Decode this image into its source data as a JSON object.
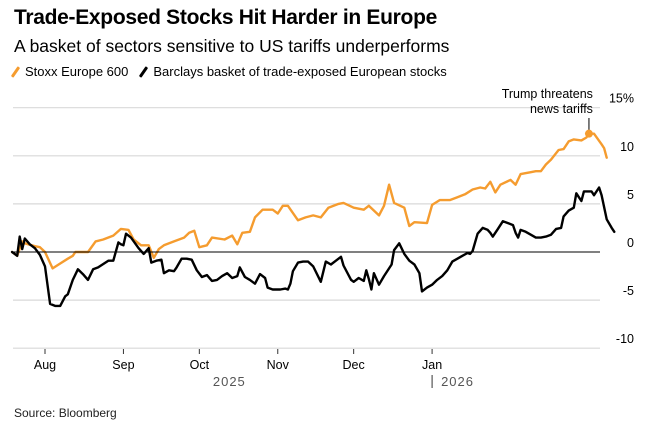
{
  "chart_data": {
    "type": "line",
    "title": "Trade-Exposed Stocks Hit Harder in Europe",
    "subtitle": "A basket of sectors sensitive to US tariffs underperforms",
    "source": "Source: Bloomberg",
    "xlabel": "",
    "ylabel": "",
    "x_unit": "days since 2025-07-01",
    "xlim": [
      18,
      249
    ],
    "ylim": [
      -11,
      16.5
    ],
    "y_ticks": [
      {
        "value": 15,
        "label": "15%"
      },
      {
        "value": 10,
        "label": "10"
      },
      {
        "value": 5,
        "label": "5"
      },
      {
        "value": 0,
        "label": "0"
      },
      {
        "value": -5,
        "label": "-5"
      },
      {
        "value": -10,
        "label": "-10"
      }
    ],
    "x_ticks": [
      {
        "value": 31,
        "label": "Aug"
      },
      {
        "value": 62,
        "label": "Sep"
      },
      {
        "value": 92,
        "label": "Oct"
      },
      {
        "value": 123,
        "label": "Nov"
      },
      {
        "value": 153,
        "label": "Dec"
      },
      {
        "value": 184,
        "label": "Jan"
      }
    ],
    "year_labels": [
      {
        "value": 92,
        "label": "2025"
      },
      {
        "value": 184,
        "label": "2026",
        "divider": true
      }
    ],
    "grid": true,
    "legend_position": "top-left",
    "series": [
      {
        "name": "Stoxx Europe 600",
        "color": "#f59c2f",
        "points": [
          [
            18,
            0
          ],
          [
            20,
            -0.4
          ],
          [
            22,
            1.1
          ],
          [
            23,
            0.9
          ],
          [
            27,
            0.6
          ],
          [
            29,
            0.5
          ],
          [
            31,
            0
          ],
          [
            34,
            -1.7
          ],
          [
            37,
            -1.2
          ],
          [
            40,
            -0.7
          ],
          [
            42,
            -0.4
          ],
          [
            43,
            0
          ],
          [
            48,
            0
          ],
          [
            51,
            1.1
          ],
          [
            54,
            1.3
          ],
          [
            58,
            1.7
          ],
          [
            61,
            2.4
          ],
          [
            64,
            2.3
          ],
          [
            66,
            1.3
          ],
          [
            69,
            0.7
          ],
          [
            72,
            0.7
          ],
          [
            74,
            -0.6
          ],
          [
            76,
            0.3
          ],
          [
            78,
            0.7
          ],
          [
            82,
            1.1
          ],
          [
            86,
            1.5
          ],
          [
            88,
            2.0
          ],
          [
            90,
            2.2
          ],
          [
            92,
            0.5
          ],
          [
            95,
            0.7
          ],
          [
            97,
            1.5
          ],
          [
            102,
            1.3
          ],
          [
            105,
            1.7
          ],
          [
            107,
            0.8
          ],
          [
            109,
            2.0
          ],
          [
            112,
            2.1
          ],
          [
            114,
            3.6
          ],
          [
            117,
            4.4
          ],
          [
            121,
            4.4
          ],
          [
            123,
            4.0
          ],
          [
            125,
            4.8
          ],
          [
            127,
            4.8
          ],
          [
            131,
            3.3
          ],
          [
            134,
            3.6
          ],
          [
            137,
            3.8
          ],
          [
            140,
            3.6
          ],
          [
            143,
            4.6
          ],
          [
            147,
            5.0
          ],
          [
            149,
            5.1
          ],
          [
            153,
            4.6
          ],
          [
            157,
            4.4
          ],
          [
            159,
            4.8
          ],
          [
            163,
            3.8
          ],
          [
            165,
            4.8
          ],
          [
            167,
            7.0
          ],
          [
            169,
            5.1
          ],
          [
            173,
            4.6
          ],
          [
            175,
            2.7
          ],
          [
            177,
            3.1
          ],
          [
            182,
            3.0
          ],
          [
            184,
            4.9
          ],
          [
            187,
            5.4
          ],
          [
            191,
            5.4
          ],
          [
            194,
            5.7
          ],
          [
            197,
            6.0
          ],
          [
            200,
            6.5
          ],
          [
            203,
            6.7
          ],
          [
            205,
            6.6
          ],
          [
            207,
            7.3
          ],
          [
            209,
            6.2
          ],
          [
            211,
            7.0
          ],
          [
            215,
            7.5
          ],
          [
            217,
            7.0
          ],
          [
            219,
            8.1
          ],
          [
            223,
            8.3
          ],
          [
            225,
            8.4
          ],
          [
            227,
            8.4
          ],
          [
            229,
            9.1
          ],
          [
            231,
            9.6
          ],
          [
            234,
            10.6
          ],
          [
            236,
            10.7
          ],
          [
            238,
            11.5
          ],
          [
            240,
            11.7
          ],
          [
            243,
            11.6
          ],
          [
            245,
            11.9
          ],
          [
            246,
            12.3
          ],
          [
            248,
            12.3
          ],
          [
            251,
            11.2
          ],
          [
            252,
            10.8
          ],
          [
            253,
            9.8
          ]
        ],
        "annotation": {
          "x": 246,
          "y": 12.3,
          "text_lines": [
            "Trump threatens",
            "news tariffs"
          ]
        }
      },
      {
        "name": "Barclays basket of trade-exposed European stocks",
        "color": "#000000",
        "points": [
          [
            18,
            0
          ],
          [
            20,
            -0.4
          ],
          [
            21,
            1.6
          ],
          [
            22,
            0.3
          ],
          [
            23,
            1.4
          ],
          [
            25,
            0.8
          ],
          [
            27,
            0.4
          ],
          [
            29,
            -0.3
          ],
          [
            31,
            -1.5
          ],
          [
            33,
            -5.4
          ],
          [
            35,
            -5.6
          ],
          [
            37,
            -5.6
          ],
          [
            39,
            -4.6
          ],
          [
            40,
            -4.4
          ],
          [
            42,
            -2.9
          ],
          [
            44,
            -1.8
          ],
          [
            46,
            -2.3
          ],
          [
            48,
            -2.9
          ],
          [
            50,
            -1.8
          ],
          [
            52,
            -1.6
          ],
          [
            56,
            -0.9
          ],
          [
            58,
            -0.9
          ],
          [
            60,
            1.0
          ],
          [
            61,
            0.8
          ],
          [
            62,
            0.7
          ],
          [
            63,
            1.9
          ],
          [
            65,
            1.5
          ],
          [
            68,
            0.4
          ],
          [
            70,
            -0.2
          ],
          [
            72,
            0.4
          ],
          [
            73,
            -1.1
          ],
          [
            75,
            -0.9
          ],
          [
            77,
            -0.8
          ],
          [
            78,
            -2.2
          ],
          [
            80,
            -1.9
          ],
          [
            82,
            -2.0
          ],
          [
            83,
            -1.6
          ],
          [
            85,
            -0.7
          ],
          [
            87,
            -0.7
          ],
          [
            89,
            -0.8
          ],
          [
            91,
            -1.9
          ],
          [
            93,
            -2.6
          ],
          [
            95,
            -2.4
          ],
          [
            97,
            -3.0
          ],
          [
            99,
            -2.9
          ],
          [
            101,
            -2.5
          ],
          [
            103,
            -2.2
          ],
          [
            105,
            -2.7
          ],
          [
            107,
            -2.5
          ],
          [
            108,
            -1.6
          ],
          [
            110,
            -2.6
          ],
          [
            112,
            -2.9
          ],
          [
            114,
            -3.3
          ],
          [
            116,
            -2.3
          ],
          [
            118,
            -2.7
          ],
          [
            119,
            -3.7
          ],
          [
            121,
            -3.9
          ],
          [
            124,
            -3.9
          ],
          [
            126,
            -3.8
          ],
          [
            127,
            -3.9
          ],
          [
            128,
            -3.3
          ],
          [
            129,
            -2.0
          ],
          [
            131,
            -1.1
          ],
          [
            133,
            -1.0
          ],
          [
            135,
            -1.0
          ],
          [
            137,
            -1.5
          ],
          [
            140,
            -3.1
          ],
          [
            142,
            -1.0
          ],
          [
            144,
            -1.3
          ],
          [
            146,
            -0.9
          ],
          [
            148,
            -0.5
          ],
          [
            149,
            -1.4
          ],
          [
            152,
            -2.9
          ],
          [
            153,
            -3.1
          ],
          [
            155,
            -2.7
          ],
          [
            157,
            -3.0
          ],
          [
            158,
            -1.9
          ],
          [
            159,
            -2.8
          ],
          [
            160,
            -3.9
          ],
          [
            161,
            -2.2
          ],
          [
            163,
            -3.4
          ],
          [
            165,
            -2.5
          ],
          [
            168,
            -1.3
          ],
          [
            169,
            0.2
          ],
          [
            171,
            0.9
          ],
          [
            173,
            -0.2
          ],
          [
            175,
            -0.9
          ],
          [
            177,
            -1.3
          ],
          [
            179,
            -2.2
          ],
          [
            180,
            -4.1
          ],
          [
            182,
            -3.7
          ],
          [
            184,
            -3.4
          ],
          [
            186,
            -2.9
          ],
          [
            188,
            -2.5
          ],
          [
            190,
            -1.9
          ],
          [
            192,
            -1.0
          ],
          [
            194,
            -0.7
          ],
          [
            196,
            -0.4
          ],
          [
            198,
            -0.1
          ],
          [
            199,
            -0.2
          ],
          [
            200,
            0.1
          ],
          [
            202,
            1.9
          ],
          [
            204,
            2.5
          ],
          [
            206,
            2.3
          ],
          [
            207,
            2.0
          ],
          [
            208,
            1.6
          ],
          [
            210,
            2.4
          ],
          [
            212,
            3.2
          ],
          [
            214,
            3.0
          ],
          [
            216,
            2.8
          ],
          [
            217,
            2.0
          ],
          [
            218,
            1.5
          ],
          [
            219,
            2.3
          ],
          [
            221,
            2.1
          ],
          [
            223,
            1.8
          ],
          [
            225,
            1.5
          ],
          [
            227,
            1.5
          ],
          [
            229,
            1.6
          ],
          [
            231,
            1.8
          ],
          [
            233,
            2.4
          ],
          [
            235,
            2.5
          ],
          [
            236,
            3.7
          ],
          [
            238,
            4.3
          ],
          [
            240,
            4.6
          ],
          [
            241,
            6.1
          ],
          [
            243,
            5.3
          ],
          [
            244,
            6.3
          ],
          [
            247,
            6.3
          ],
          [
            248,
            5.9
          ],
          [
            250,
            6.7
          ],
          [
            251,
            5.9
          ],
          [
            253,
            3.4
          ],
          [
            255,
            2.5
          ],
          [
            256,
            2.1
          ]
        ]
      }
    ]
  }
}
